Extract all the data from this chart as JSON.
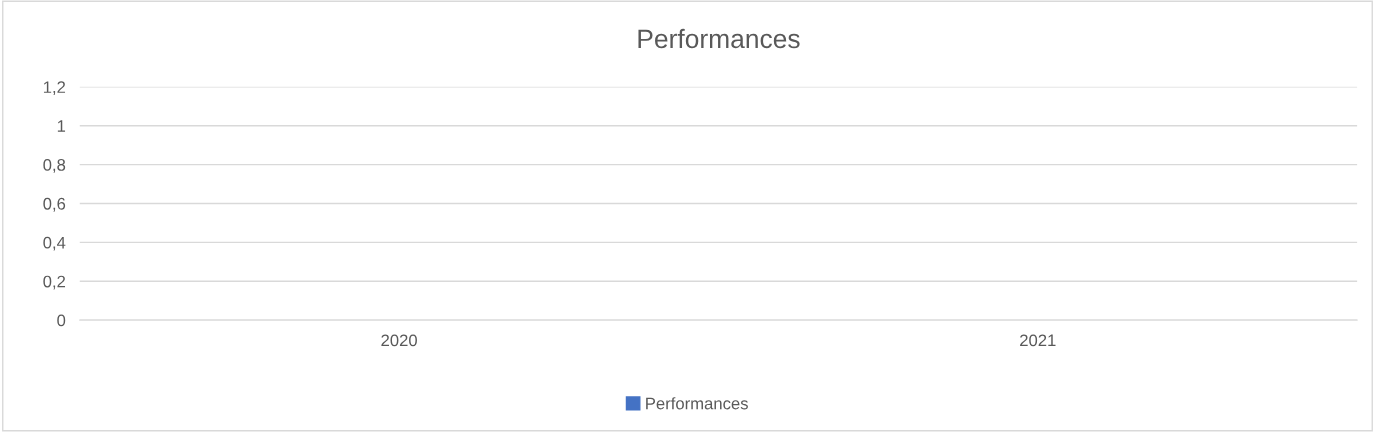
{
  "chart_data": {
    "type": "bar",
    "title": "Performances",
    "categories": [
      "2020",
      "2021"
    ],
    "series": [
      {
        "name": "Performances",
        "color": "#4472c4",
        "values": [
          null,
          null
        ]
      }
    ],
    "ylim": [
      0,
      1.2
    ],
    "yticks": [
      0,
      {
        "value": 0.2,
        "label": "0,2"
      },
      {
        "value": 0.4,
        "label": "0,4"
      },
      {
        "value": 0.6,
        "label": "0,6"
      },
      {
        "value": 0.8,
        "label": "0,8"
      },
      1,
      {
        "value": 1.2,
        "label": "1,2"
      }
    ],
    "grid": "y",
    "legend": "bottom"
  }
}
